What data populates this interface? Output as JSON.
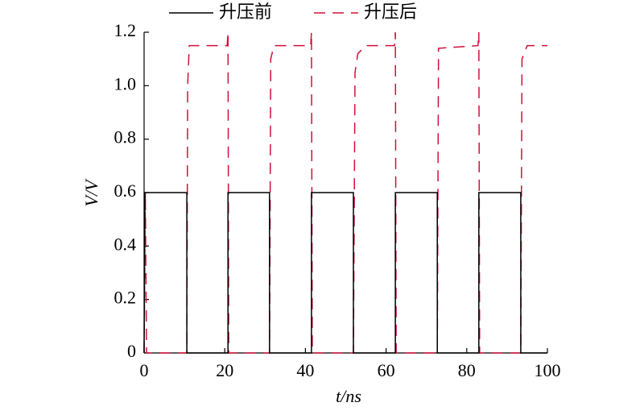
{
  "chart_data": {
    "type": "line",
    "x_label": "t/ns",
    "y_label": "V/V",
    "xlim": [
      0,
      100
    ],
    "xticks": [
      0,
      20,
      40,
      60,
      80,
      100
    ],
    "ylim": [
      0,
      1.2
    ],
    "yticks": [
      0,
      0.2,
      0.4,
      0.6,
      0.8,
      {
        "value": 1,
        "label": "1.0"
      },
      1.2
    ],
    "series": [
      {
        "name": "升压前",
        "color": "#000000",
        "dash": false,
        "x": [
          0,
          0.2,
          10.6,
          10.6,
          20.8,
          20.8,
          31.1,
          31.1,
          41.5,
          41.5,
          51.9,
          51.9,
          62.3,
          62.3,
          72.7,
          72.7,
          83.0,
          83.0,
          93.4,
          93.4,
          100
        ],
        "values": [
          0,
          0.6,
          0.6,
          0,
          0,
          0.6,
          0.6,
          0,
          0,
          0.6,
          0.6,
          0,
          0,
          0.6,
          0.6,
          0,
          0,
          0.6,
          0.6,
          0,
          0
        ]
      },
      {
        "name": "升压后",
        "color": "#d0103a",
        "dash": true,
        "x": [
          0,
          0.3,
          0.6,
          10.6,
          10.8,
          11.2,
          20.6,
          20.8,
          21.0,
          31.1,
          31.4,
          32.2,
          41.3,
          41.5,
          41.7,
          51.9,
          52.3,
          53,
          55,
          62.1,
          62.3,
          62.5,
          72.7,
          73,
          82.8,
          83.0,
          83.2,
          93.4,
          93.7,
          95,
          100
        ],
        "values": [
          0,
          0.6,
          0,
          0,
          1.0,
          1.15,
          1.15,
          1.2,
          0,
          0,
          1.1,
          1.15,
          1.15,
          1.2,
          0,
          0,
          1.05,
          1.12,
          1.15,
          1.15,
          1.2,
          0,
          0,
          1.14,
          1.15,
          1.2,
          0,
          0,
          1.1,
          1.15,
          1.15
        ]
      }
    ]
  }
}
